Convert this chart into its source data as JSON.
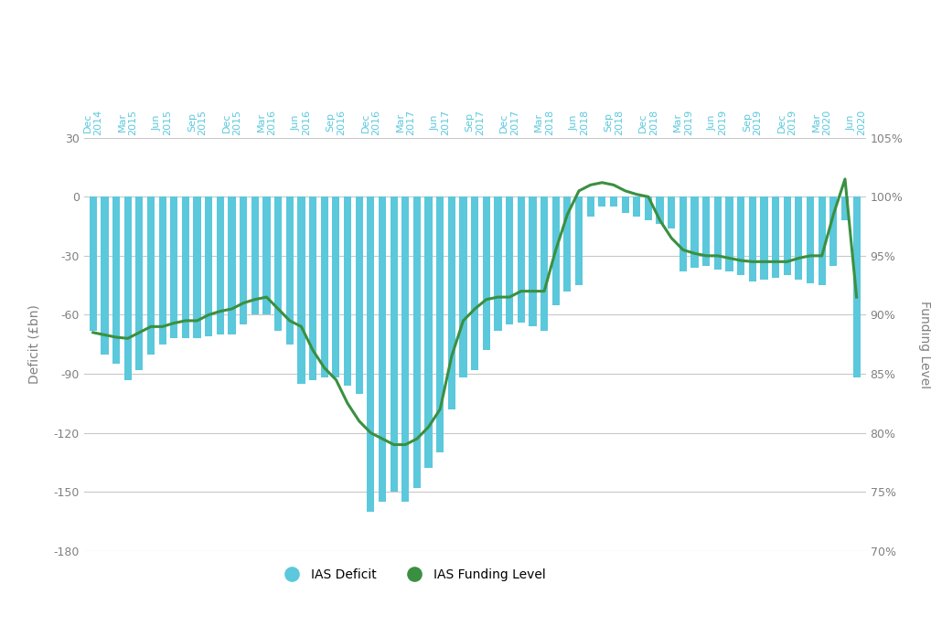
{
  "x_labels": [
    "Dec\n2014",
    "Mar\n2015",
    "Jun\n2015",
    "Sep\n2015",
    "Dec\n2015",
    "Mar\n2016",
    "Jun\n2016",
    "Sep\n2016",
    "Dec\n2016",
    "Mar\n2017",
    "Jun\n2017",
    "Sep\n2017",
    "Dec\n2017",
    "Mar\n2018",
    "Jun\n2018",
    "Sep\n2018",
    "Dec\n2018",
    "Mar\n2019",
    "Jun\n2019",
    "Sep\n2019",
    "Dec\n2019",
    "Mar\n2020",
    "Jun\n2020"
  ],
  "deficit_monthly": [
    -68,
    -80,
    -85,
    -93,
    -88,
    -80,
    -75,
    -72,
    -72,
    -72,
    -71,
    -70,
    -70,
    -65,
    -60,
    -60,
    -68,
    -75,
    -95,
    -93,
    -92,
    -92,
    -96,
    -100,
    -160,
    -155,
    -150,
    -155,
    -148,
    -138,
    -130,
    -108,
    -92,
    -88,
    -78,
    -68,
    -65,
    -64,
    -66,
    -68,
    -55,
    -48,
    -45,
    -10,
    -5,
    -5,
    -8,
    -10,
    -12,
    -14,
    -16,
    -38,
    -36,
    -35,
    -37,
    -38,
    -40,
    -43,
    -42,
    -41,
    -40,
    -42,
    -44,
    -45,
    -35,
    -12,
    -92
  ],
  "funding_monthly": [
    88.5,
    88.3,
    88.1,
    88.0,
    88.5,
    89.0,
    89.0,
    89.3,
    89.5,
    89.5,
    90.0,
    90.3,
    90.5,
    91.0,
    91.3,
    91.5,
    90.5,
    89.5,
    89.0,
    87.0,
    85.5,
    84.5,
    82.5,
    81.0,
    80.0,
    79.5,
    79.0,
    79.0,
    79.5,
    80.5,
    82.0,
    86.5,
    89.5,
    90.5,
    91.3,
    91.5,
    91.5,
    92.0,
    92.0,
    92.0,
    95.5,
    98.5,
    100.5,
    101.0,
    101.2,
    101.0,
    100.5,
    100.2,
    100.0,
    98.0,
    96.5,
    95.5,
    95.2,
    95.0,
    95.0,
    94.8,
    94.6,
    94.5,
    94.5,
    94.5,
    94.5,
    94.8,
    95.0,
    95.0,
    98.5,
    101.5,
    91.5
  ],
  "bar_color": "#5BC8DC",
  "line_color": "#3A9040",
  "background_color": "#FFFFFF",
  "ylabel_left": "Deficit (£bn)",
  "ylabel_right": "Funding Level",
  "ylim_left": [
    -180,
    30
  ],
  "ylim_right": [
    70,
    105
  ],
  "yticks_left": [
    30,
    0,
    -30,
    -60,
    -90,
    -120,
    -150,
    -180
  ],
  "yticks_right": [
    105,
    100,
    95,
    90,
    85,
    80,
    75,
    70
  ],
  "ytick_labels_right": [
    "105%",
    "100%",
    "95%",
    "90%",
    "85%",
    "80%",
    "75%",
    "70%"
  ],
  "grid_color": "#C8C8C8",
  "legend_items": [
    "IAS Deficit",
    "IAS Funding Level"
  ],
  "legend_colors": [
    "#5BC8DC",
    "#3A9040"
  ],
  "axis_label_color": "#5BC8DC",
  "tick_label_color": "#808080"
}
